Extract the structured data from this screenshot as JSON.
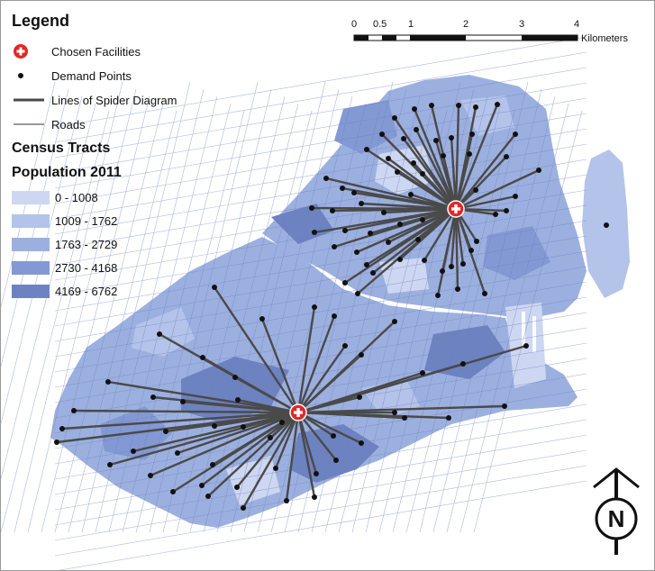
{
  "legend": {
    "title": "Legend",
    "items": [
      {
        "label": "Chosen Facilities",
        "icon": "facility-cross-icon"
      },
      {
        "label": "Demand Points",
        "icon": "demand-point-icon"
      },
      {
        "label": "Lines of Spider Diagram",
        "icon": "spider-line-icon"
      },
      {
        "label": "Roads",
        "icon": "road-line-icon"
      }
    ],
    "census_title": "Census Tracts",
    "population_title": "Population 2011",
    "classes": [
      {
        "label": "0 - 1008",
        "color": "#cdd7f2"
      },
      {
        "label": "1009 - 1762",
        "color": "#b3c3ea"
      },
      {
        "label": "1763 - 2729",
        "color": "#9cb0e0"
      },
      {
        "label": "2730 - 4168",
        "color": "#8399d4"
      },
      {
        "label": "4169 - 6762",
        "color": "#6d82c0"
      }
    ]
  },
  "scale_bar": {
    "ticks": [
      "0",
      "0.5",
      "1",
      "2",
      "3",
      "4"
    ],
    "unit": "Kilometers"
  },
  "north_arrow": {
    "label": "N",
    "icon": "north-arrow-icon"
  },
  "colors": {
    "facility": "#e32726",
    "demand": "#111111",
    "spider_line": "#4a4a4a",
    "road": "#6f7fb8"
  }
}
